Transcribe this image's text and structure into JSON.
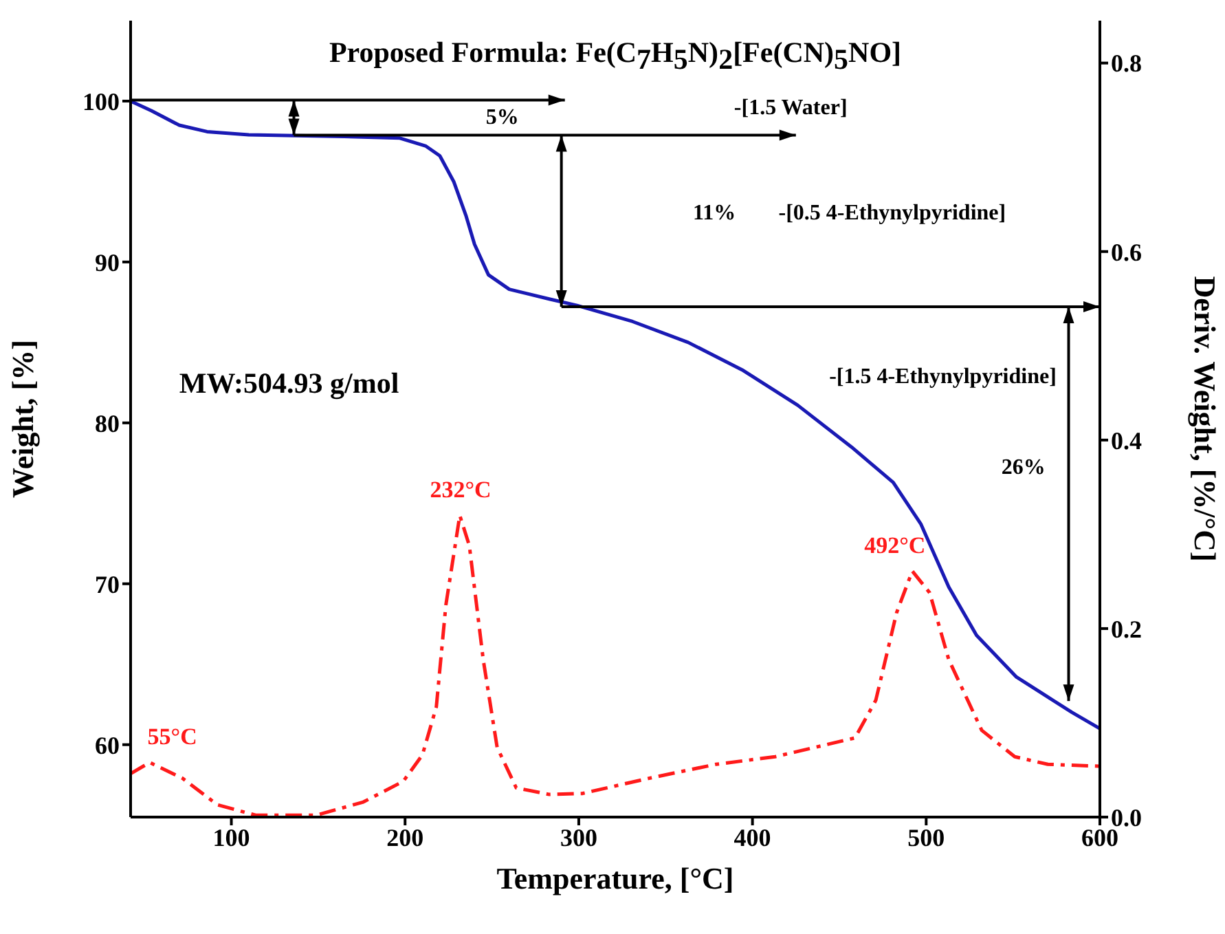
{
  "chart_data": {
    "type": "line",
    "title": "Proposed Formula: Fe(C$_{7}$H$_{5}$N)$_{2}$[Fe(CN)$_{5}$NO]",
    "xlabel": "Temperature, [°C]",
    "ylabel": "Weight, [%]",
    "y2label": "Deriv. Weight, [%/°C]",
    "xlim": [
      42,
      600
    ],
    "xticks": [
      100,
      200,
      300,
      400,
      500,
      600
    ],
    "ylim": [
      55.5,
      105
    ],
    "yticks": [
      60,
      70,
      80,
      90,
      100
    ],
    "y2lim": [
      0,
      0.845
    ],
    "y2ticks": [
      {
        "value": 0,
        "label": "0.0"
      },
      {
        "value": 0.2,
        "label": "0.2"
      },
      {
        "value": 0.4,
        "label": "0.4"
      },
      {
        "value": 0.6,
        "label": "0.6"
      },
      {
        "value": 0.8,
        "label": "0.8"
      }
    ],
    "marker": "none",
    "series": [
      {
        "color": "#1a1ab4",
        "line_style": "solid",
        "x": [
          42,
          54,
          70,
          86,
          110,
          165,
          197,
          212,
          220,
          228,
          235,
          240,
          248,
          260,
          283,
          299,
          331,
          363,
          394,
          426,
          457,
          481,
          497,
          513,
          529,
          552,
          584,
          600
        ],
        "values": [
          100,
          99.4,
          98.5,
          98.1,
          97.9,
          97.8,
          97.7,
          97.2,
          96.6,
          95,
          92.9,
          91.1,
          89.2,
          88.3,
          87.7,
          87.3,
          86.3,
          85,
          83.3,
          81.1,
          78.5,
          76.3,
          73.7,
          69.8,
          66.8,
          64.2,
          62,
          61
        ]
      },
      {
        "color": "#ff1a1a",
        "line_style": "dashed",
        "axis": "y2",
        "x": [
          42,
          53,
          72,
          92,
          114,
          149,
          176,
          199,
          210,
          218,
          223.5,
          231.5,
          237,
          245,
          253,
          264,
          283,
          302,
          340,
          379,
          413,
          436,
          459,
          471,
          483,
          492,
          502,
          513,
          532,
          551,
          570,
          600
        ],
        "values": [
          0.046,
          0.058,
          0.041,
          0.013,
          0.002,
          0.002,
          0.016,
          0.038,
          0.066,
          0.117,
          0.225,
          0.32,
          0.288,
          0.167,
          0.074,
          0.031,
          0.024,
          0.025,
          0.041,
          0.056,
          0.064,
          0.074,
          0.084,
          0.124,
          0.217,
          0.261,
          0.238,
          0.167,
          0.092,
          0.064,
          0.056,
          0.054
        ]
      }
    ],
    "annotations": [
      "55°C",
      "232°C",
      "492°C",
      "5%",
      "11%",
      "26%",
      "-[1.5 Water]",
      "-[0.5 4-Ethynylpyridine]",
      "-[1.5 4-Ethynylpyridine]",
      "MW:504.93 g/mol"
    ]
  }
}
